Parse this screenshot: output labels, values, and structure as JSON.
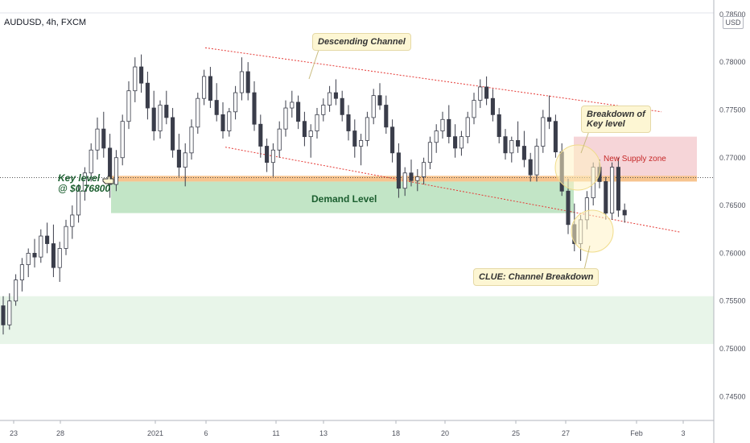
{
  "header": {
    "symbol": "AUDUSD, 4h, FXCM",
    "currency": "USD"
  },
  "price_axis": {
    "labels": [
      "0.78500",
      "0.78000",
      "0.77500",
      "0.77000",
      "0.76500",
      "0.76000",
      "0.75500",
      "0.75000",
      "0.74500"
    ]
  },
  "time_axis": {
    "labels": [
      "23",
      "28",
      "2021",
      "6",
      "11",
      "13",
      "18",
      "20",
      "25",
      "27",
      "Feb",
      "3"
    ]
  },
  "annotations": {
    "descending_channel": "Descending Channel",
    "breakdown_line1": "Breakdown of",
    "breakdown_line2": "Key level",
    "new_supply": "New Supply zone",
    "key_level_line1": "Key level",
    "key_level_line2": "@ $0.76800",
    "demand": "Demand Level",
    "clue": "CLUE: Channel Breakdown"
  },
  "colors": {
    "bull_candle": "#ffffff",
    "bear_candle": "#3a3d4a",
    "demand_zone": "#c2e5c6",
    "supply_zone": "#f6d5d8",
    "key_level_band": "#f7c48f",
    "lower_zone": "#e8f5e9",
    "channel_line": "#e53935"
  },
  "chart_data": {
    "type": "candlestick",
    "title": "AUDUSD, 4h, FXCM",
    "ylim": [
      0.7425,
      0.7865
    ],
    "key_level": 0.768,
    "zones": {
      "demand": [
        0.7642,
        0.7675
      ],
      "key_band": [
        0.7675,
        0.7681
      ],
      "supply": [
        0.7678,
        0.7722
      ],
      "lower_support": [
        0.7505,
        0.7555
      ]
    },
    "channel": {
      "upper": [
        [
          1,
          0.7815
        ],
        [
          32,
          0.7748
        ]
      ],
      "lower": [
        [
          11,
          0.7711
        ],
        [
          33,
          0.7622
        ]
      ]
    },
    "x_ticks": [
      "23",
      "28",
      "2021",
      "6",
      "11",
      "13",
      "18",
      "20",
      "25",
      "27",
      "Feb",
      "3"
    ],
    "y_ticks": [
      0.785,
      0.78,
      0.775,
      0.77,
      0.765,
      0.76,
      0.755,
      0.75,
      0.745
    ],
    "ohlc": [
      [
        0.7545,
        0.7555,
        0.7515,
        0.7525
      ],
      [
        0.7525,
        0.7558,
        0.752,
        0.755
      ],
      [
        0.755,
        0.7578,
        0.7545,
        0.7572
      ],
      [
        0.7572,
        0.7595,
        0.756,
        0.7588
      ],
      [
        0.7588,
        0.7605,
        0.7575,
        0.76
      ],
      [
        0.76,
        0.7615,
        0.7585,
        0.7596
      ],
      [
        0.7596,
        0.7625,
        0.759,
        0.7618
      ],
      [
        0.7618,
        0.7632,
        0.76,
        0.761
      ],
      [
        0.761,
        0.763,
        0.7575,
        0.7585
      ],
      [
        0.7585,
        0.7612,
        0.757,
        0.7605
      ],
      [
        0.7605,
        0.7635,
        0.7598,
        0.7628
      ],
      [
        0.7628,
        0.765,
        0.7615,
        0.764
      ],
      [
        0.764,
        0.7672,
        0.7632,
        0.7665
      ],
      [
        0.7665,
        0.769,
        0.7655,
        0.7684
      ],
      [
        0.7684,
        0.7715,
        0.7675,
        0.7708
      ],
      [
        0.7708,
        0.7742,
        0.7698,
        0.773
      ],
      [
        0.773,
        0.7748,
        0.77,
        0.771
      ],
      [
        0.771,
        0.7725,
        0.7658,
        0.7672
      ],
      [
        0.7672,
        0.7708,
        0.7665,
        0.77
      ],
      [
        0.77,
        0.7745,
        0.7692,
        0.7738
      ],
      [
        0.7738,
        0.778,
        0.773,
        0.777
      ],
      [
        0.777,
        0.7805,
        0.7758,
        0.7795
      ],
      [
        0.7795,
        0.7808,
        0.7768,
        0.7778
      ],
      [
        0.7778,
        0.779,
        0.774,
        0.7752
      ],
      [
        0.7752,
        0.777,
        0.7718,
        0.7728
      ],
      [
        0.7728,
        0.776,
        0.772,
        0.7755
      ],
      [
        0.7755,
        0.777,
        0.7735,
        0.7742
      ],
      [
        0.7742,
        0.7752,
        0.77,
        0.7708
      ],
      [
        0.7708,
        0.7725,
        0.768,
        0.769
      ],
      [
        0.769,
        0.7715,
        0.767,
        0.7705
      ],
      [
        0.7705,
        0.774,
        0.7698,
        0.7732
      ],
      [
        0.7732,
        0.7768,
        0.7725,
        0.7762
      ],
      [
        0.7762,
        0.7792,
        0.7755,
        0.7785
      ],
      [
        0.7785,
        0.7795,
        0.7752,
        0.776
      ],
      [
        0.776,
        0.7778,
        0.7738,
        0.7745
      ],
      [
        0.7745,
        0.7758,
        0.772,
        0.7728
      ],
      [
        0.7728,
        0.7752,
        0.7722,
        0.7748
      ],
      [
        0.7748,
        0.7775,
        0.774,
        0.7768
      ],
      [
        0.7768,
        0.7805,
        0.776,
        0.779
      ],
      [
        0.779,
        0.78,
        0.776,
        0.7768
      ],
      [
        0.7768,
        0.778,
        0.7728,
        0.7735
      ],
      [
        0.7735,
        0.7745,
        0.77,
        0.7712
      ],
      [
        0.7712,
        0.772,
        0.7685,
        0.7695
      ],
      [
        0.7695,
        0.7715,
        0.768,
        0.7708
      ],
      [
        0.7708,
        0.7738,
        0.77,
        0.773
      ],
      [
        0.773,
        0.776,
        0.7722,
        0.7752
      ],
      [
        0.7752,
        0.777,
        0.7742,
        0.7758
      ],
      [
        0.7758,
        0.7765,
        0.773,
        0.7738
      ],
      [
        0.7738,
        0.7748,
        0.7712,
        0.7722
      ],
      [
        0.7722,
        0.7735,
        0.77,
        0.7728
      ],
      [
        0.7728,
        0.7752,
        0.772,
        0.7745
      ],
      [
        0.7745,
        0.7762,
        0.7738,
        0.7755
      ],
      [
        0.7755,
        0.7775,
        0.7748,
        0.7768
      ],
      [
        0.7768,
        0.7782,
        0.7755,
        0.7762
      ],
      [
        0.7762,
        0.777,
        0.7738,
        0.7745
      ],
      [
        0.7745,
        0.7755,
        0.7718,
        0.7728
      ],
      [
        0.7728,
        0.774,
        0.77,
        0.7712
      ],
      [
        0.7712,
        0.7725,
        0.7692,
        0.7718
      ],
      [
        0.7718,
        0.7748,
        0.7712,
        0.7742
      ],
      [
        0.7742,
        0.7772,
        0.7735,
        0.7765
      ],
      [
        0.7765,
        0.7778,
        0.775,
        0.7755
      ],
      [
        0.7755,
        0.7765,
        0.7725,
        0.7732
      ],
      [
        0.7732,
        0.774,
        0.7695,
        0.7705
      ],
      [
        0.7705,
        0.7715,
        0.7658,
        0.7668
      ],
      [
        0.7668,
        0.769,
        0.766,
        0.7684
      ],
      [
        0.7684,
        0.7698,
        0.767,
        0.7676
      ],
      [
        0.7676,
        0.7688,
        0.7665,
        0.768
      ],
      [
        0.768,
        0.77,
        0.7672,
        0.7695
      ],
      [
        0.7695,
        0.7722,
        0.7688,
        0.7716
      ],
      [
        0.7716,
        0.7735,
        0.7705,
        0.7728
      ],
      [
        0.7728,
        0.7748,
        0.772,
        0.774
      ],
      [
        0.774,
        0.7755,
        0.7715,
        0.7722
      ],
      [
        0.7722,
        0.7735,
        0.77,
        0.771
      ],
      [
        0.771,
        0.7728,
        0.7702,
        0.7722
      ],
      [
        0.7722,
        0.7748,
        0.7715,
        0.7742
      ],
      [
        0.7742,
        0.7768,
        0.7735,
        0.776
      ],
      [
        0.776,
        0.7782,
        0.7752,
        0.7774
      ],
      [
        0.7774,
        0.7785,
        0.7755,
        0.7762
      ],
      [
        0.7762,
        0.7772,
        0.7738,
        0.7745
      ],
      [
        0.7745,
        0.7752,
        0.7715,
        0.7722
      ],
      [
        0.7722,
        0.773,
        0.7698,
        0.7705
      ],
      [
        0.7705,
        0.7722,
        0.7695,
        0.7718
      ],
      [
        0.7718,
        0.7738,
        0.7705,
        0.7712
      ],
      [
        0.7712,
        0.7728,
        0.769,
        0.7698
      ],
      [
        0.7698,
        0.7705,
        0.7675,
        0.7682
      ],
      [
        0.7682,
        0.772,
        0.7675,
        0.7712
      ],
      [
        0.7712,
        0.775,
        0.7705,
        0.7742
      ],
      [
        0.7742,
        0.7765,
        0.773,
        0.7738
      ],
      [
        0.7738,
        0.7745,
        0.77,
        0.7706
      ],
      [
        0.7706,
        0.7715,
        0.766,
        0.7665
      ],
      [
        0.7665,
        0.7678,
        0.762,
        0.763
      ],
      [
        0.763,
        0.7652,
        0.7602,
        0.761
      ],
      [
        0.761,
        0.764,
        0.7592,
        0.7635
      ],
      [
        0.7635,
        0.7665,
        0.7625,
        0.7658
      ],
      [
        0.7658,
        0.7695,
        0.765,
        0.769
      ],
      [
        0.769,
        0.7698,
        0.7668,
        0.7675
      ],
      [
        0.7675,
        0.768,
        0.7635,
        0.7642
      ],
      [
        0.7642,
        0.7695,
        0.7635,
        0.769
      ],
      [
        0.769,
        0.77,
        0.7638,
        0.7645
      ],
      [
        0.7645,
        0.7652,
        0.7632,
        0.764
      ]
    ]
  }
}
